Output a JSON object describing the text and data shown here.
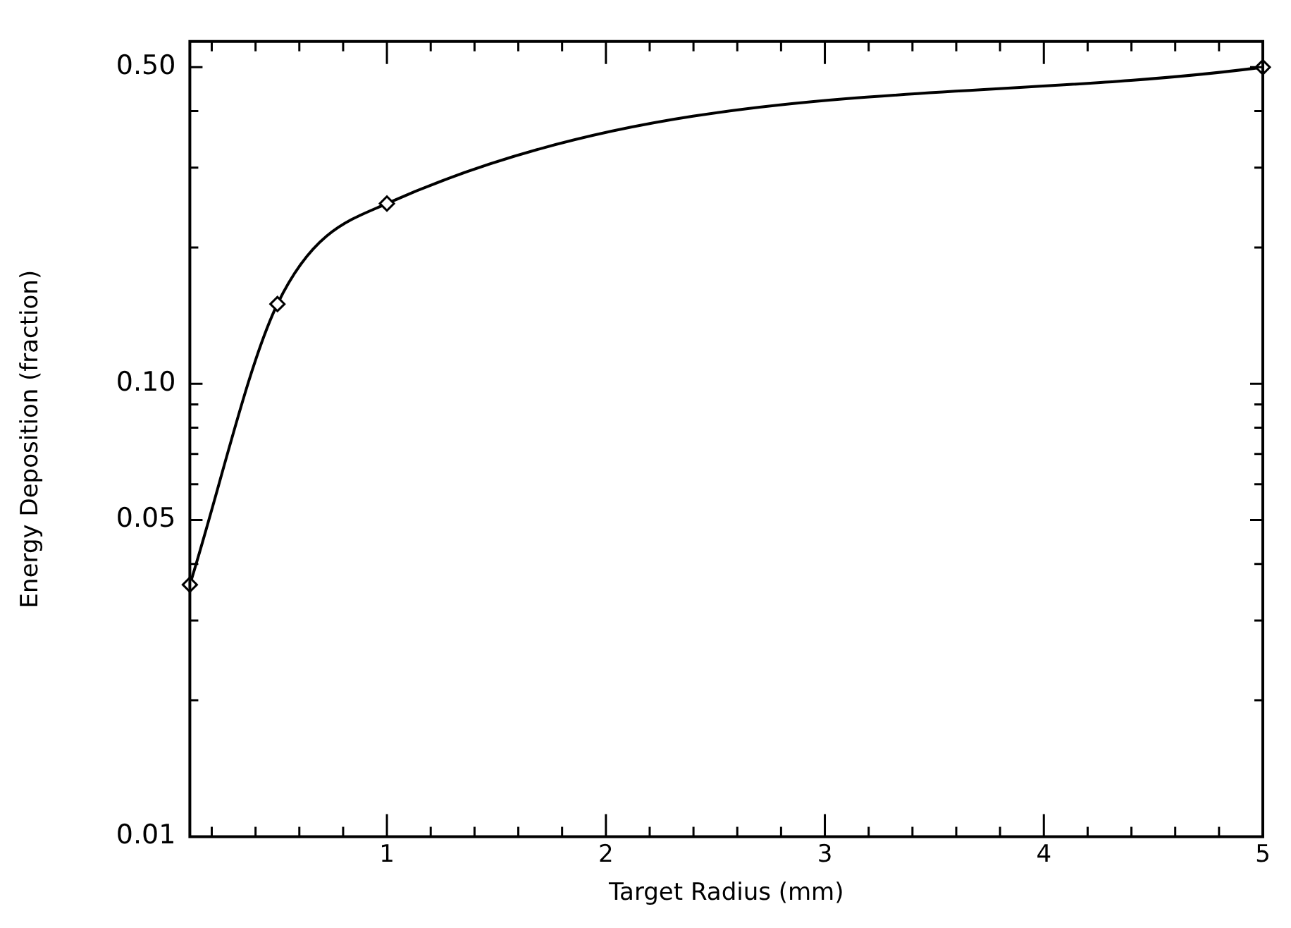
{
  "chart_data": {
    "type": "line",
    "xlabel": "Target Radius (mm)",
    "ylabel": "Energy Deposition (fraction)",
    "x": [
      0.1,
      0.5,
      1,
      5
    ],
    "series": [
      {
        "color": "#000000",
        "values": [
          0.036,
          0.15,
          0.25,
          0.5
        ]
      }
    ],
    "marker": "diamond",
    "line_style": "solid",
    "log": "y",
    "grid": false,
    "legend": false,
    "xlim": [
      0.1,
      5
    ],
    "xticks": [
      {
        "value": 0.2,
        "label": null
      },
      {
        "value": 0.4,
        "label": null
      },
      {
        "value": 0.6,
        "label": null
      },
      {
        "value": 0.8,
        "label": null
      },
      1,
      {
        "value": 1.2,
        "label": null
      },
      {
        "value": 1.4,
        "label": null
      },
      {
        "value": 1.6,
        "label": null
      },
      {
        "value": 1.8,
        "label": null
      },
      2,
      {
        "value": 2.2,
        "label": null
      },
      {
        "value": 2.4,
        "label": null
      },
      {
        "value": 2.6,
        "label": null
      },
      {
        "value": 2.8,
        "label": null
      },
      3,
      {
        "value": 3.2,
        "label": null
      },
      {
        "value": 3.4,
        "label": null
      },
      {
        "value": 3.6,
        "label": null
      },
      {
        "value": 3.8,
        "label": null
      },
      4,
      {
        "value": 4.2,
        "label": null
      },
      {
        "value": 4.4,
        "label": null
      },
      {
        "value": 4.6,
        "label": null
      },
      {
        "value": 4.8,
        "label": null
      },
      5
    ],
    "ylim": [
      0.01,
      0.57
    ],
    "yticks": [
      0.01,
      {
        "value": 0.02,
        "label": null
      },
      {
        "value": 0.03,
        "label": null
      },
      {
        "value": 0.04,
        "label": null
      },
      0.05,
      {
        "value": 0.06,
        "label": null
      },
      {
        "value": 0.07,
        "label": null
      },
      {
        "value": 0.08,
        "label": null
      },
      {
        "value": 0.09,
        "label": null
      },
      {
        "value": 0.1,
        "label": "0.10"
      },
      {
        "value": 0.2,
        "label": null
      },
      {
        "value": 0.3,
        "label": null
      },
      {
        "value": 0.4,
        "label": null
      },
      {
        "value": 0.5,
        "label": "0.50"
      }
    ]
  }
}
